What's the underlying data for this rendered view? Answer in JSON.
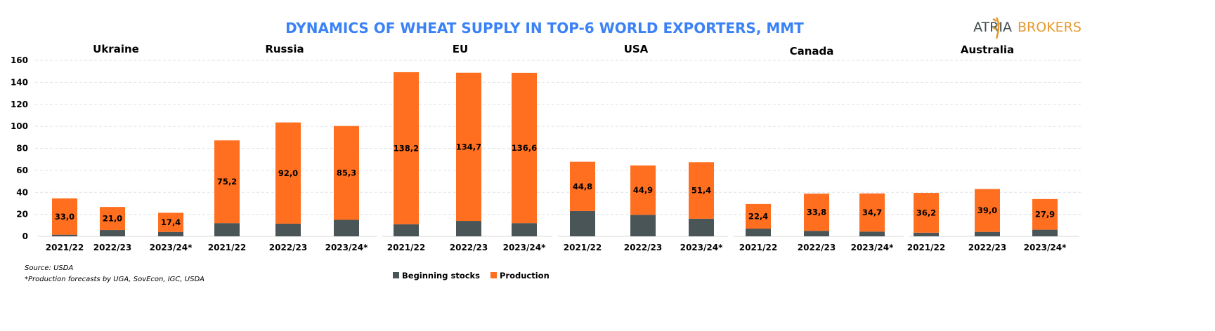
{
  "chart_data": {
    "type": "bar",
    "stacked": true,
    "title": "DYNAMICS OF WHEAT SUPPLY IN TOP-6 WORLD EXPORTERS, MMT",
    "ylim": [
      0,
      160
    ],
    "yticks": [
      0,
      20,
      40,
      60,
      80,
      100,
      120,
      140,
      160
    ],
    "grid": true,
    "legend_position": "bottom",
    "colors": {
      "Beginning stocks": "#4a5558",
      "Production": "#ff6f1f",
      "title": "#3b82f6"
    },
    "series_names": [
      "Beginning stocks",
      "Production"
    ],
    "panels": [
      {
        "country": "Ukraine",
        "categories": [
          "2021/22",
          "2022/23",
          "2023/24*"
        ],
        "beginning_stocks": [
          1.5,
          5.7,
          4.0
        ],
        "production": [
          33.0,
          21.0,
          17.4
        ],
        "production_labels": [
          "33,0",
          "21,0",
          "17,4"
        ]
      },
      {
        "country": "Russia",
        "categories": [
          "2021/22",
          "2022/23",
          "2023/24*"
        ],
        "beginning_stocks": [
          12.0,
          11.5,
          15.0
        ],
        "production": [
          75.2,
          92.0,
          85.3
        ],
        "production_labels": [
          "75,2",
          "92,0",
          "85,3"
        ]
      },
      {
        "country": "EU",
        "categories": [
          "2021/22",
          "2022/23",
          "2023/24*"
        ],
        "beginning_stocks": [
          11.0,
          14.0,
          12.0
        ],
        "production": [
          138.2,
          134.7,
          136.6
        ],
        "production_labels": [
          "138,2",
          "134,7",
          "136,6"
        ]
      },
      {
        "country": "USA",
        "categories": [
          "2021/22",
          "2022/23",
          "2023/24*"
        ],
        "beginning_stocks": [
          23.0,
          19.5,
          16.0
        ],
        "production": [
          44.8,
          44.9,
          51.4
        ],
        "production_labels": [
          "44,8",
          "44,9",
          "51,4"
        ]
      },
      {
        "country": "Canada",
        "categories": [
          "2021/22",
          "2022/23",
          "2023/24*"
        ],
        "beginning_stocks": [
          7.0,
          5.0,
          4.3
        ],
        "production": [
          22.4,
          33.8,
          34.7
        ],
        "production_labels": [
          "22,4",
          "33,8",
          "34,7"
        ]
      },
      {
        "country": "Australia",
        "categories": [
          "2021/22",
          "2022/23",
          "2023/24*"
        ],
        "beginning_stocks": [
          3.3,
          4.0,
          6.0
        ],
        "production": [
          36.2,
          39.0,
          27.9
        ],
        "production_labels": [
          "36,2",
          "39,0",
          "27,9"
        ]
      }
    ]
  },
  "logo": {
    "part1": "ATRIA",
    "part2": "BROKERS"
  },
  "notes": {
    "source": "Source: USDA",
    "footnote": "*Production forecasts by UGA, SovEcon, IGC, USDA"
  }
}
